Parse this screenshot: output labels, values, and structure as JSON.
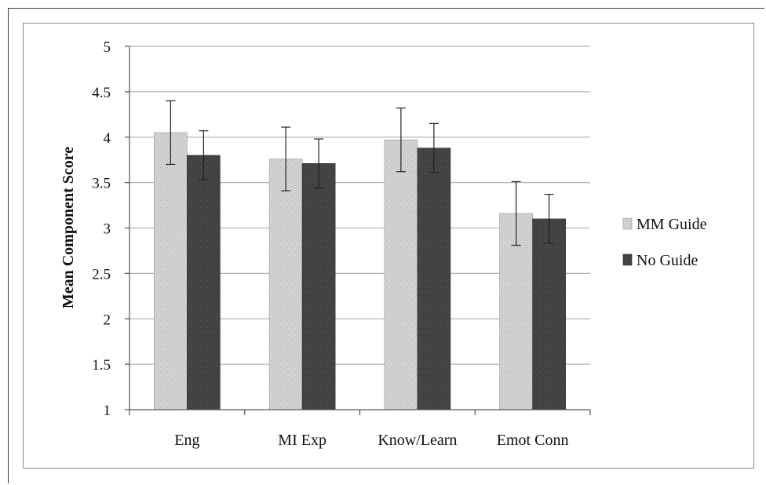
{
  "chart_data": {
    "type": "bar",
    "title": "",
    "xlabel": "",
    "ylabel": "Mean Component Score",
    "ylim": [
      1,
      5
    ],
    "yticks": [
      "1",
      "1.5",
      "2",
      "2.5",
      "3",
      "3.5",
      "4",
      "4.5",
      "5"
    ],
    "categories": [
      "Eng",
      "MI Exp",
      "Know/Learn",
      "Emot Conn"
    ],
    "series": [
      {
        "name": "MM Guide",
        "values": [
          4.05,
          3.76,
          3.97,
          3.16
        ],
        "error": [
          0.35,
          0.35,
          0.35,
          0.35
        ]
      },
      {
        "name": "No Guide",
        "values": [
          3.8,
          3.71,
          3.88,
          3.1
        ],
        "error": [
          0.27,
          0.27,
          0.27,
          0.27
        ]
      }
    ],
    "grid": true,
    "legend_position": "right",
    "colors": {
      "MM Guide": "#d2d2d2",
      "No Guide": "#3a3a3a"
    }
  }
}
